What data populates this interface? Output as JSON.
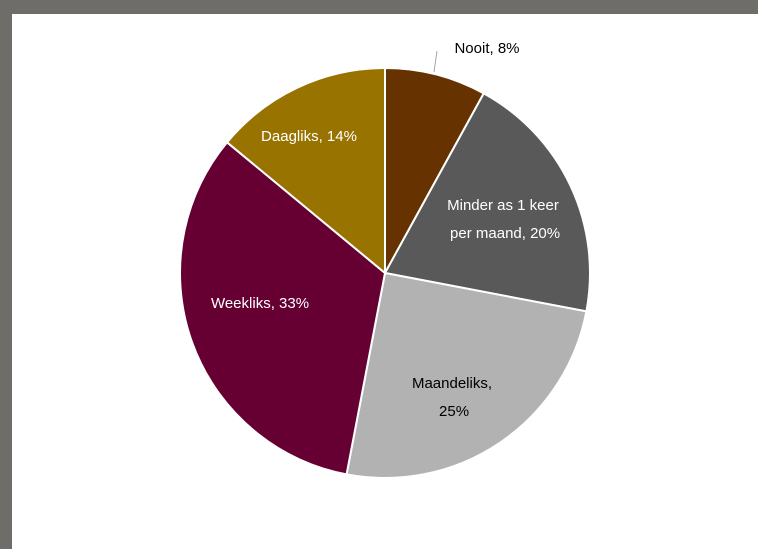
{
  "chart_data": {
    "type": "pie",
    "values": [
      8,
      20,
      25,
      33,
      14
    ],
    "value_labels": [
      "Nooit, 8%",
      "Minder as 1 keer per maand, 20%",
      "Maandeliks, 25%",
      "Weekliks, 33%",
      "Daagliks, 14%"
    ],
    "colors": [
      "#663300",
      "#595959",
      "#b2b2b2",
      "#660033",
      "#997300"
    ],
    "label_colors": [
      "#000000",
      "#ffffff",
      "#000000",
      "#ffffff",
      "#ffffff"
    ]
  }
}
